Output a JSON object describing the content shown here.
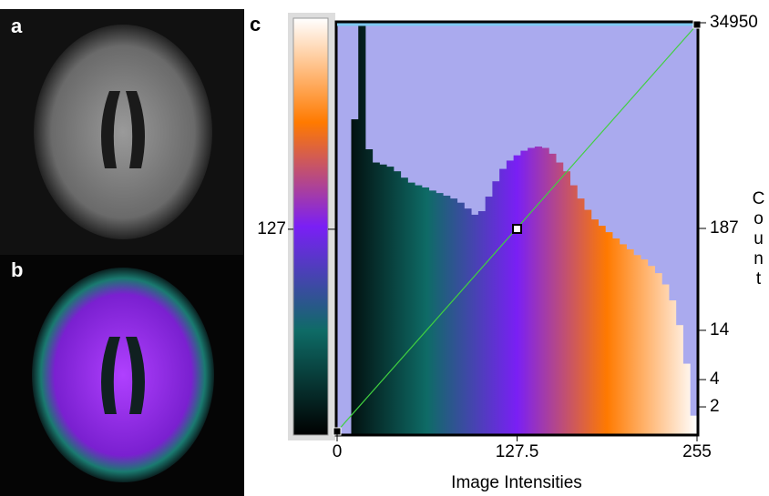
{
  "panel_labels": [
    "a",
    "b",
    "c"
  ],
  "chart_data": {
    "type": "histogram",
    "xlabel": "Image Intensities",
    "ylabel": "Count",
    "bins": [
      0,
      5,
      10,
      15,
      20,
      25,
      30,
      35,
      40,
      45,
      50,
      55,
      60,
      65,
      70,
      75,
      80,
      85,
      90,
      95,
      100,
      105,
      110,
      115,
      120,
      125,
      130,
      135,
      140,
      145,
      150,
      155,
      160,
      165,
      170,
      175,
      180,
      185,
      190,
      195,
      200,
      205,
      210,
      215,
      220,
      225,
      230,
      235,
      240,
      245,
      250,
      255
    ],
    "values": [
      0,
      0,
      3000,
      34950,
      1400,
      1000,
      950,
      900,
      800,
      680,
      600,
      560,
      530,
      490,
      460,
      430,
      400,
      360,
      310,
      265,
      290,
      420,
      620,
      850,
      1050,
      1200,
      1350,
      1450,
      1500,
      1450,
      1250,
      1000,
      800,
      560,
      400,
      300,
      235,
      200,
      170,
      145,
      125,
      110,
      95,
      85,
      72,
      60,
      45,
      30,
      16,
      6,
      1.6
    ],
    "xlim": [
      0,
      255
    ],
    "xticks": [
      0,
      127.5,
      255
    ],
    "ylim": [
      1,
      34950
    ],
    "yticks": [
      2,
      4,
      14,
      187,
      34950
    ],
    "y_scale": "log",
    "colorbar": {
      "lim": [
        0,
        255
      ],
      "ticks": [
        127
      ]
    },
    "colormap": [
      "#000000",
      "#0e6b66",
      "#7a1ff5",
      "#ff7a00",
      "#ffffff"
    ],
    "background_color": "#aaaaee"
  }
}
